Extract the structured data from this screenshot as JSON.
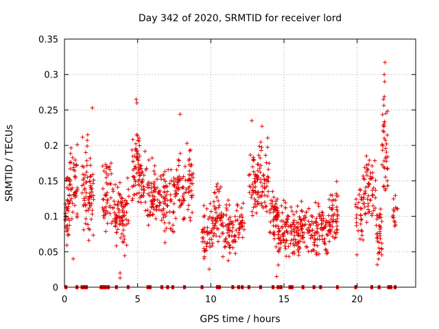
{
  "chart_data": {
    "type": "scatter",
    "title": "Day 342 of 2020, SRMTID for receiver lord",
    "xlabel": "GPS time / hours",
    "ylabel": "SRMTID / TECUs",
    "xlim": [
      0,
      24
    ],
    "ylim": [
      0,
      0.35
    ],
    "x_ticks": [
      "0",
      "5",
      "10",
      "15",
      "20"
    ],
    "x_tick_values": [
      0,
      5,
      10,
      15,
      20
    ],
    "y_ticks": [
      "0",
      "0.05",
      "0.1",
      "0.15",
      "0.2",
      "0.25",
      "0.3",
      "0.35"
    ],
    "y_tick_values": [
      0,
      0.05,
      0.1,
      0.15,
      0.2,
      0.25,
      0.3,
      0.35
    ],
    "grid": true,
    "marker": "+",
    "series_color": "#e00000",
    "clusters": [
      {
        "x_start": 0.05,
        "x_end": 0.35,
        "mean": 0.11,
        "spread": 0.04,
        "n": 40
      },
      {
        "x_start": 0.35,
        "x_end": 0.9,
        "mean": 0.14,
        "spread": 0.05,
        "n": 45
      },
      {
        "x_start": 1.2,
        "x_end": 1.6,
        "mean": 0.15,
        "spread": 0.05,
        "n": 35
      },
      {
        "x_start": 1.6,
        "x_end": 2.0,
        "mean": 0.13,
        "spread": 0.05,
        "n": 40
      },
      {
        "x_start": 2.6,
        "x_end": 3.2,
        "mean": 0.13,
        "spread": 0.04,
        "n": 45
      },
      {
        "x_start": 3.3,
        "x_end": 3.9,
        "mean": 0.11,
        "spread": 0.04,
        "n": 50
      },
      {
        "x_start": 3.9,
        "x_end": 4.4,
        "mean": 0.1,
        "spread": 0.04,
        "n": 40
      },
      {
        "x_start": 4.6,
        "x_end": 5.2,
        "mean": 0.17,
        "spread": 0.04,
        "n": 60
      },
      {
        "x_start": 5.2,
        "x_end": 6.0,
        "mean": 0.14,
        "spread": 0.04,
        "n": 50
      },
      {
        "x_start": 6.0,
        "x_end": 6.8,
        "mean": 0.13,
        "spread": 0.04,
        "n": 55
      },
      {
        "x_start": 6.8,
        "x_end": 7.5,
        "mean": 0.12,
        "spread": 0.04,
        "n": 50
      },
      {
        "x_start": 7.5,
        "x_end": 8.2,
        "mean": 0.14,
        "spread": 0.04,
        "n": 50
      },
      {
        "x_start": 8.2,
        "x_end": 8.8,
        "mean": 0.15,
        "spread": 0.04,
        "n": 40
      },
      {
        "x_start": 9.4,
        "x_end": 10.2,
        "mean": 0.08,
        "spread": 0.03,
        "n": 50
      },
      {
        "x_start": 10.2,
        "x_end": 10.8,
        "mean": 0.11,
        "spread": 0.04,
        "n": 45
      },
      {
        "x_start": 10.8,
        "x_end": 11.7,
        "mean": 0.08,
        "spread": 0.03,
        "n": 60
      },
      {
        "x_start": 11.7,
        "x_end": 12.3,
        "mean": 0.09,
        "spread": 0.03,
        "n": 30
      },
      {
        "x_start": 12.6,
        "x_end": 13.2,
        "mean": 0.14,
        "spread": 0.04,
        "n": 45
      },
      {
        "x_start": 13.2,
        "x_end": 14.0,
        "mean": 0.15,
        "spread": 0.04,
        "n": 55
      },
      {
        "x_start": 14.0,
        "x_end": 14.6,
        "mean": 0.1,
        "spread": 0.03,
        "n": 50
      },
      {
        "x_start": 14.6,
        "x_end": 15.3,
        "mean": 0.08,
        "spread": 0.03,
        "n": 55
      },
      {
        "x_start": 15.3,
        "x_end": 16.2,
        "mean": 0.08,
        "spread": 0.03,
        "n": 65
      },
      {
        "x_start": 16.2,
        "x_end": 17.2,
        "mean": 0.08,
        "spread": 0.03,
        "n": 60
      },
      {
        "x_start": 17.2,
        "x_end": 18.0,
        "mean": 0.08,
        "spread": 0.03,
        "n": 55
      },
      {
        "x_start": 18.0,
        "x_end": 18.7,
        "mean": 0.1,
        "spread": 0.03,
        "n": 55
      },
      {
        "x_start": 19.9,
        "x_end": 20.4,
        "mean": 0.1,
        "spread": 0.04,
        "n": 30
      },
      {
        "x_start": 20.4,
        "x_end": 21.3,
        "mean": 0.14,
        "spread": 0.04,
        "n": 60
      },
      {
        "x_start": 21.3,
        "x_end": 21.7,
        "mean": 0.08,
        "spread": 0.03,
        "n": 35
      },
      {
        "x_start": 21.7,
        "x_end": 22.1,
        "mean": 0.19,
        "spread": 0.06,
        "n": 40
      },
      {
        "x_start": 22.4,
        "x_end": 22.8,
        "mean": 0.1,
        "spread": 0.02,
        "n": 15
      }
    ],
    "outliers": [
      {
        "x": 21.9,
        "y": 0.317
      },
      {
        "x": 21.85,
        "y": 0.3
      },
      {
        "x": 21.88,
        "y": 0.29
      },
      {
        "x": 21.8,
        "y": 0.265
      },
      {
        "x": 4.9,
        "y": 0.265
      },
      {
        "x": 4.95,
        "y": 0.26
      },
      {
        "x": 1.9,
        "y": 0.253
      },
      {
        "x": 7.9,
        "y": 0.244
      },
      {
        "x": 12.8,
        "y": 0.235
      },
      {
        "x": 13.5,
        "y": 0.227
      },
      {
        "x": 3.8,
        "y": 0.02
      },
      {
        "x": 3.8,
        "y": 0.013
      },
      {
        "x": 14.5,
        "y": 0.015
      },
      {
        "x": 0.6,
        "y": 0.04
      }
    ],
    "zero_values_x": [
      0.1,
      0.85,
      1.2,
      1.35,
      1.5,
      2.5,
      2.65,
      2.8,
      3.0,
      3.55,
      4.35,
      5.7,
      5.85,
      6.65,
      7.05,
      7.4,
      8.2,
      9.4,
      10.45,
      10.6,
      11.5,
      11.9,
      12.15,
      12.6,
      13.4,
      14.25,
      14.6,
      14.8,
      15.4,
      15.55,
      16.3,
      17.05,
      17.5,
      18.65,
      19.9,
      21.0,
      21.5,
      22.15,
      22.3,
      22.6
    ]
  }
}
